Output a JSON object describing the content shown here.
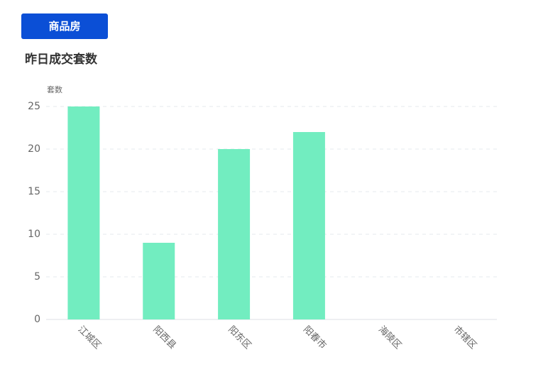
{
  "tab": "商品房",
  "chart_data": {
    "type": "bar",
    "title": "昨日成交套数",
    "y_label": "套数",
    "categories": [
      "江城区",
      "阳西县",
      "阳东区",
      "阳春市",
      "海陵区",
      "市辖区"
    ],
    "values": [
      25,
      9,
      20,
      22,
      0,
      0
    ],
    "color": "#72edc0",
    "ylim": [
      0,
      25
    ],
    "yticks": [
      0,
      5,
      10,
      15,
      20,
      25
    ],
    "grid": true
  }
}
